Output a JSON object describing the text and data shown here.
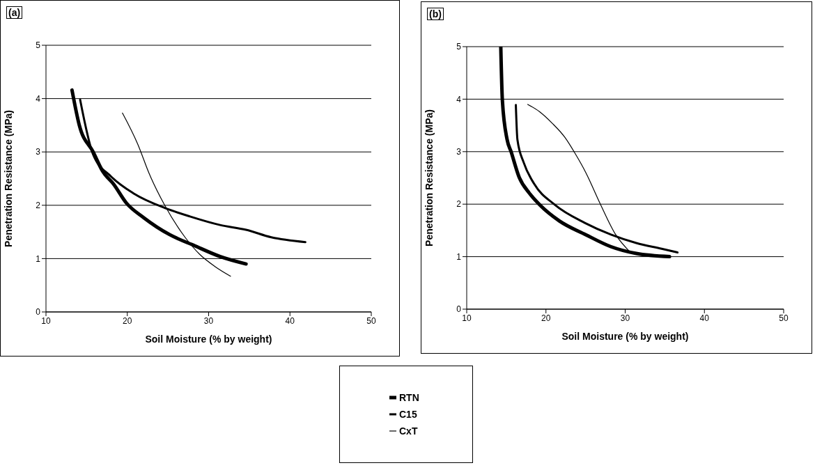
{
  "chart_data": [
    {
      "type": "line",
      "title": "(a)",
      "xlabel": "Soil Moisture (% by weight)",
      "ylabel": "Penetration Resistance (MPa)",
      "xlim": [
        10,
        50
      ],
      "xticks": [
        10,
        20,
        30,
        40,
        50
      ],
      "ylim": [
        0,
        5
      ],
      "yticks": [
        0,
        1,
        2,
        3,
        4,
        5
      ],
      "grid": "y",
      "legend": "bottom",
      "series": [
        {
          "name": "RTN",
          "color": "#000000",
          "x": [
            13.2,
            14.1,
            15.8,
            17.0,
            18.3,
            19.9,
            22.0,
            25.2,
            28.3,
            31.4,
            34.6
          ],
          "values": [
            4.16,
            3.5,
            3.0,
            2.63,
            2.4,
            2.04,
            1.77,
            1.45,
            1.24,
            1.04,
            0.9
          ]
        },
        {
          "name": "C15",
          "color": "#000000",
          "x": [
            14.2,
            15.8,
            18.0,
            20.8,
            24.6,
            27.7,
            31.4,
            34.6,
            37.7,
            41.9
          ],
          "values": [
            3.98,
            2.95,
            2.54,
            2.22,
            1.95,
            1.79,
            1.63,
            1.54,
            1.4,
            1.31
          ]
        },
        {
          "name": "CxT",
          "color": "#000000",
          "x": [
            19.4,
            21.3,
            22.7,
            24.6,
            27.1,
            28.9,
            30.8,
            32.7
          ],
          "values": [
            3.73,
            3.14,
            2.59,
            2.0,
            1.4,
            1.08,
            0.85,
            0.67
          ]
        }
      ]
    },
    {
      "type": "line",
      "title": "(b)",
      "xlabel": "Soil Moisture (% by weight)",
      "ylabel": "Penetration Resistance (MPa)",
      "xlim": [
        10,
        50
      ],
      "xticks": [
        10,
        20,
        30,
        40,
        50
      ],
      "ylim": [
        0,
        5
      ],
      "yticks": [
        0,
        1,
        2,
        3,
        4,
        5
      ],
      "grid": "y",
      "legend": "bottom",
      "series": [
        {
          "name": "RTN",
          "color": "#000000",
          "x": [
            14.3,
            14.5,
            15.1,
            15.6,
            16.6,
            17.9,
            19.2,
            21.7,
            25.0,
            28.2,
            31.4,
            35.6
          ],
          "values": [
            5.0,
            3.98,
            3.23,
            3.0,
            2.52,
            2.21,
            1.99,
            1.68,
            1.42,
            1.19,
            1.06,
            1.0
          ]
        },
        {
          "name": "C15",
          "color": "#000000",
          "x": [
            16.2,
            16.4,
            17.2,
            18.5,
            21.1,
            24.95,
            28.2,
            31.4,
            34.6,
            36.6
          ],
          "values": [
            3.89,
            3.23,
            2.79,
            2.39,
            1.99,
            1.64,
            1.42,
            1.26,
            1.15,
            1.08
          ]
        },
        {
          "name": "CxT",
          "color": "#000000",
          "x": [
            17.7,
            19.2,
            20.8,
            22.4,
            23.7,
            25.0,
            26.9,
            28.8,
            30.6
          ],
          "values": [
            3.9,
            3.76,
            3.54,
            3.27,
            2.96,
            2.61,
            1.99,
            1.42,
            1.09
          ]
        }
      ]
    }
  ]
}
